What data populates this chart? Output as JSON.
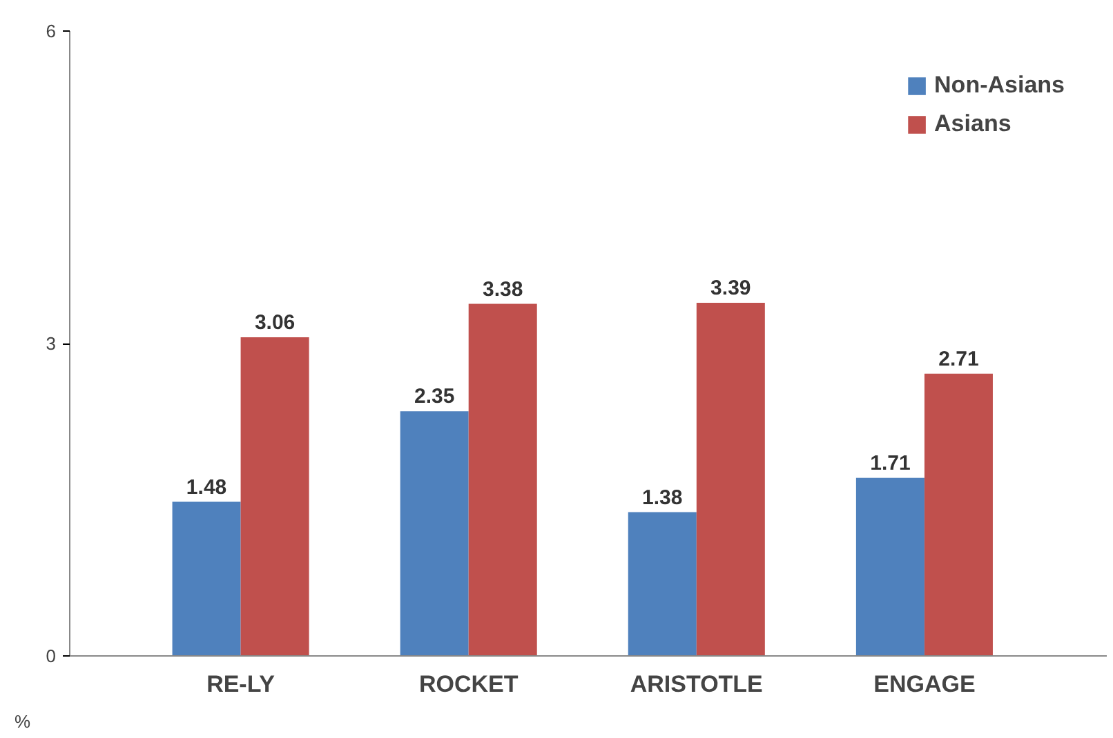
{
  "chart_data": {
    "type": "bar",
    "categories": [
      "RE-LY",
      "ROCKET",
      "ARISTOTLE",
      "ENGAGE"
    ],
    "series": [
      {
        "name": "Non-Asians",
        "color": "#4f81bd",
        "values": [
          1.48,
          2.35,
          1.38,
          1.71
        ]
      },
      {
        "name": "Asians",
        "color": "#c0504d",
        "values": [
          3.06,
          3.38,
          3.39,
          2.71
        ]
      }
    ],
    "ylabel": "%",
    "ylim": [
      0,
      6
    ],
    "yticks": [
      0,
      3,
      6
    ],
    "grid": false,
    "legend": "top right",
    "data_labels": true
  }
}
